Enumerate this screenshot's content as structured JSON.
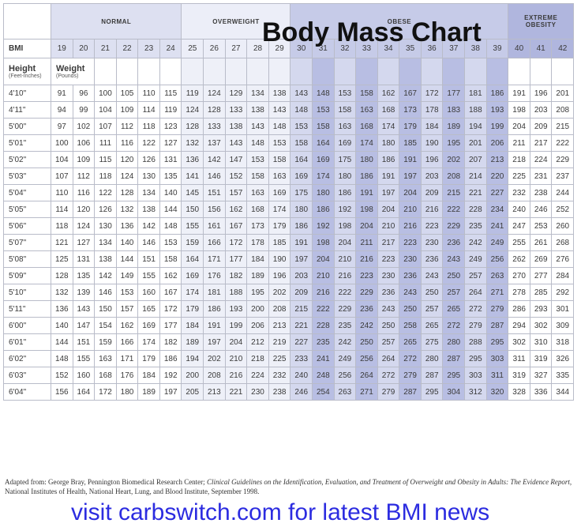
{
  "chart_data": {
    "type": "table",
    "title": "Body Mass Chart",
    "categories": [
      {
        "name": "NORMAL",
        "bmi_range": [
          19,
          24
        ]
      },
      {
        "name": "OVERWEIGHT",
        "bmi_range": [
          25,
          29
        ]
      },
      {
        "name": "OBESE",
        "bmi_range": [
          30,
          39
        ]
      },
      {
        "name": "EXTREME OBESITY",
        "bmi_range": [
          40,
          42
        ]
      }
    ],
    "bmi_label": "BMI",
    "bmi_values": [
      19,
      20,
      21,
      22,
      23,
      24,
      25,
      26,
      27,
      28,
      29,
      30,
      31,
      32,
      33,
      34,
      35,
      36,
      37,
      38,
      39,
      40,
      41,
      42
    ],
    "row_header": {
      "title": "Height",
      "subtitle": "(Feet-Inches)"
    },
    "col_header": {
      "title": "Weight",
      "subtitle": "(Pounds)"
    },
    "rows": [
      {
        "height": "4'10\"",
        "weights": [
          91,
          96,
          100,
          105,
          110,
          115,
          119,
          124,
          129,
          134,
          138,
          143,
          148,
          153,
          158,
          162,
          167,
          172,
          177,
          181,
          186,
          191,
          196,
          201
        ]
      },
      {
        "height": "4'11\"",
        "weights": [
          94,
          99,
          104,
          109,
          114,
          119,
          124,
          128,
          133,
          138,
          143,
          148,
          153,
          158,
          163,
          168,
          173,
          178,
          183,
          188,
          193,
          198,
          203,
          208
        ]
      },
      {
        "height": "5'00\"",
        "weights": [
          97,
          102,
          107,
          112,
          118,
          123,
          128,
          133,
          138,
          143,
          148,
          153,
          158,
          163,
          168,
          174,
          179,
          184,
          189,
          194,
          199,
          204,
          209,
          215
        ]
      },
      {
        "height": "5'01\"",
        "weights": [
          100,
          106,
          111,
          116,
          122,
          127,
          132,
          137,
          143,
          148,
          153,
          158,
          164,
          169,
          174,
          180,
          185,
          190,
          195,
          201,
          206,
          211,
          217,
          222
        ]
      },
      {
        "height": "5'02\"",
        "weights": [
          104,
          109,
          115,
          120,
          126,
          131,
          136,
          142,
          147,
          153,
          158,
          164,
          169,
          175,
          180,
          186,
          191,
          196,
          202,
          207,
          213,
          218,
          224,
          229
        ]
      },
      {
        "height": "5'03\"",
        "weights": [
          107,
          112,
          118,
          124,
          130,
          135,
          141,
          146,
          152,
          158,
          163,
          169,
          174,
          180,
          186,
          191,
          197,
          203,
          208,
          214,
          220,
          225,
          231,
          237
        ]
      },
      {
        "height": "5'04\"",
        "weights": [
          110,
          116,
          122,
          128,
          134,
          140,
          145,
          151,
          157,
          163,
          169,
          175,
          180,
          186,
          191,
          197,
          204,
          209,
          215,
          221,
          227,
          232,
          238,
          244
        ]
      },
      {
        "height": "5'05\"",
        "weights": [
          114,
          120,
          126,
          132,
          138,
          144,
          150,
          156,
          162,
          168,
          174,
          180,
          186,
          192,
          198,
          204,
          210,
          216,
          222,
          228,
          234,
          240,
          246,
          252
        ]
      },
      {
        "height": "5'06\"",
        "weights": [
          118,
          124,
          130,
          136,
          142,
          148,
          155,
          161,
          167,
          173,
          179,
          186,
          192,
          198,
          204,
          210,
          216,
          223,
          229,
          235,
          241,
          247,
          253,
          260
        ]
      },
      {
        "height": "5'07\"",
        "weights": [
          121,
          127,
          134,
          140,
          146,
          153,
          159,
          166,
          172,
          178,
          185,
          191,
          198,
          204,
          211,
          217,
          223,
          230,
          236,
          242,
          249,
          255,
          261,
          268
        ]
      },
      {
        "height": "5'08\"",
        "weights": [
          125,
          131,
          138,
          144,
          151,
          158,
          164,
          171,
          177,
          184,
          190,
          197,
          204,
          210,
          216,
          223,
          230,
          236,
          243,
          249,
          256,
          262,
          269,
          276
        ]
      },
      {
        "height": "5'09\"",
        "weights": [
          128,
          135,
          142,
          149,
          155,
          162,
          169,
          176,
          182,
          189,
          196,
          203,
          210,
          216,
          223,
          230,
          236,
          243,
          250,
          257,
          263,
          270,
          277,
          284
        ]
      },
      {
        "height": "5'10\"",
        "weights": [
          132,
          139,
          146,
          153,
          160,
          167,
          174,
          181,
          188,
          195,
          202,
          209,
          216,
          222,
          229,
          236,
          243,
          250,
          257,
          264,
          271,
          278,
          285,
          292
        ]
      },
      {
        "height": "5'11\"",
        "weights": [
          136,
          143,
          150,
          157,
          165,
          172,
          179,
          186,
          193,
          200,
          208,
          215,
          222,
          229,
          236,
          243,
          250,
          257,
          265,
          272,
          279,
          286,
          293,
          301
        ]
      },
      {
        "height": "6'00\"",
        "weights": [
          140,
          147,
          154,
          162,
          169,
          177,
          184,
          191,
          199,
          206,
          213,
          221,
          228,
          235,
          242,
          250,
          258,
          265,
          272,
          279,
          287,
          294,
          302,
          309
        ]
      },
      {
        "height": "6'01\"",
        "weights": [
          144,
          151,
          159,
          166,
          174,
          182,
          189,
          197,
          204,
          212,
          219,
          227,
          235,
          242,
          250,
          257,
          265,
          275,
          280,
          288,
          295,
          302,
          310,
          318
        ]
      },
      {
        "height": "6'02\"",
        "weights": [
          148,
          155,
          163,
          171,
          179,
          186,
          194,
          202,
          210,
          218,
          225,
          233,
          241,
          249,
          256,
          264,
          272,
          280,
          287,
          295,
          303,
          311,
          319,
          326
        ]
      },
      {
        "height": "6'03\"",
        "weights": [
          152,
          160,
          168,
          176,
          184,
          192,
          200,
          208,
          216,
          224,
          232,
          240,
          248,
          256,
          264,
          272,
          279,
          287,
          295,
          303,
          311,
          319,
          327,
          335
        ]
      },
      {
        "height": "6'04\"",
        "weights": [
          156,
          164,
          172,
          180,
          189,
          197,
          205,
          213,
          221,
          230,
          238,
          246,
          254,
          263,
          271,
          279,
          287,
          295,
          304,
          312,
          320,
          328,
          336,
          344
        ]
      }
    ]
  },
  "source_note": {
    "prefix": "Adapted from: George Bray, Pennington Biomedical Research Center; ",
    "title": "Clinical Guidelines on the Identification, Evaluation, and Treatment of Overweight and Obesity in Adults: The Evidence Report",
    "suffix": ", National Institutes of Health, National Heart, Lung, and Blood Institute, September 1998."
  },
  "footer_banner": "visit carbswitch.com for latest BMI news",
  "colors": {
    "normal_header": "#dde0f1",
    "overweight_header": "#eceef8",
    "obese_header": "#c6cbe8",
    "extreme_header": "#b0b6de",
    "banner_text": "#2c2ce0"
  }
}
